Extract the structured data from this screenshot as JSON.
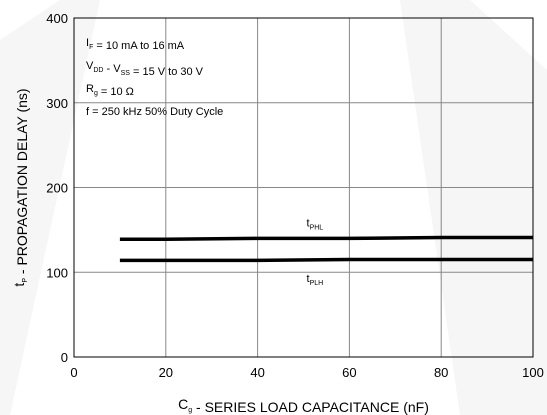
{
  "chart_data": {
    "type": "line",
    "xlabel": {
      "main": "C",
      "sub": "g",
      "rest": " - SERIES LOAD CAPACITANCE (nF)"
    },
    "ylabel": {
      "main": "t",
      "sub": "P",
      "rest": " - PROPAGATION DELAY (ns)"
    },
    "xlim": [
      0,
      100
    ],
    "ylim": [
      0,
      400
    ],
    "xticks": [
      0,
      20,
      40,
      60,
      80,
      100
    ],
    "yticks": [
      0,
      100,
      200,
      300,
      400
    ],
    "grid": true,
    "conditions": [
      [
        {
          "t": "I"
        },
        {
          "t": "F",
          "sub": true
        },
        {
          "t": " = 10 mA to 16 mA"
        }
      ],
      [
        {
          "t": "V"
        },
        {
          "t": "DD",
          "sub": true
        },
        {
          "t": " - V"
        },
        {
          "t": "SS",
          "sub": true
        },
        {
          "t": " = 15 V to 30 V"
        }
      ],
      [
        {
          "t": "R"
        },
        {
          "t": "g",
          "sub": true
        },
        {
          "t": " = 10 Ω"
        }
      ],
      [
        {
          "t": "f = 250 kHz 50% Duty Cycle"
        }
      ]
    ],
    "series": [
      {
        "name": "PHL",
        "label_main": "t",
        "label_sub": "PHL",
        "label_pos": "above",
        "label_at": 50,
        "x": [
          10,
          20,
          40,
          60,
          80,
          100
        ],
        "y": [
          139,
          139,
          140,
          140,
          141,
          141
        ]
      },
      {
        "name": "PLH",
        "label_main": "t",
        "label_sub": "PLH",
        "label_pos": "below",
        "label_at": 50,
        "x": [
          10,
          20,
          40,
          60,
          80,
          100
        ],
        "y": [
          114,
          114,
          114,
          115,
          115,
          115
        ]
      }
    ],
    "colors": {
      "line": "#000000",
      "grid": "#888888",
      "axis": "#000000"
    }
  }
}
